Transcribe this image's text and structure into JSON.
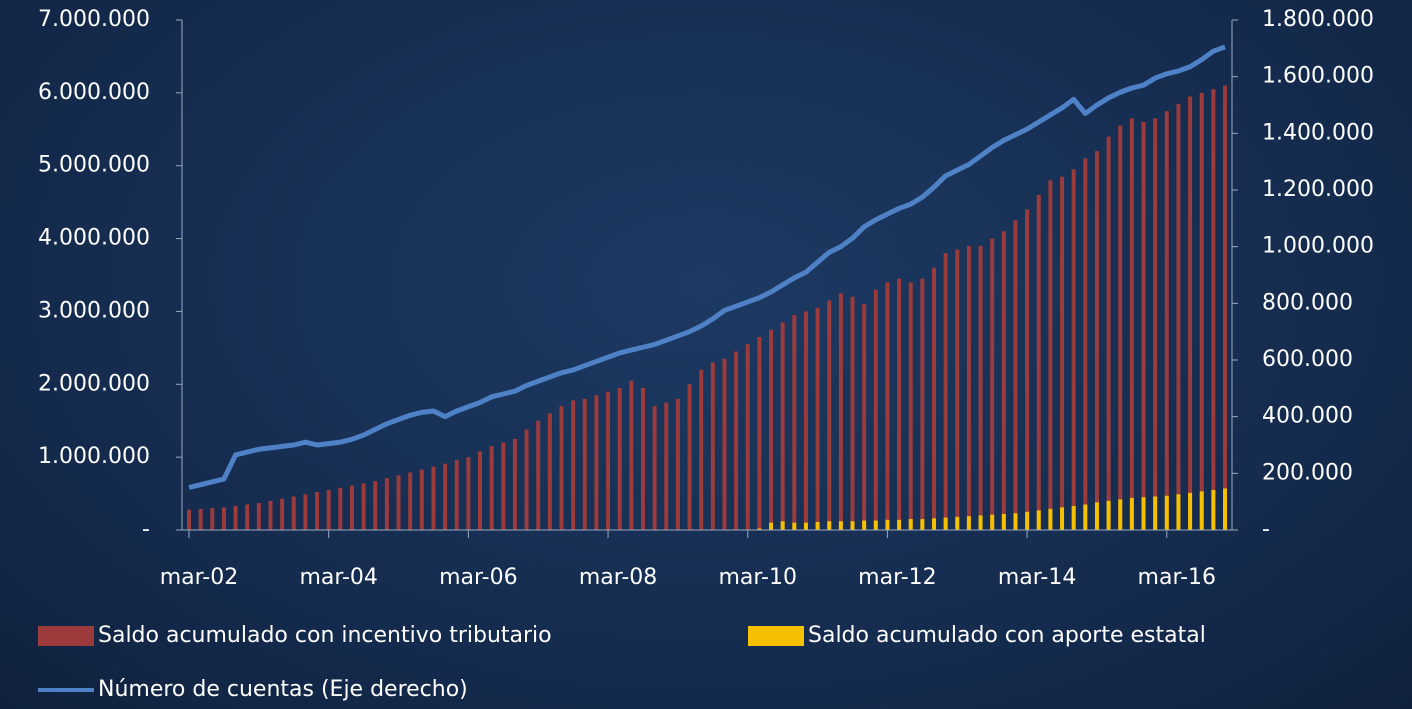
{
  "chart_data": {
    "type": "bar",
    "categories": [
      "mar-02",
      null,
      null,
      null,
      null,
      null,
      null,
      null,
      null,
      null,
      null,
      null,
      "mar-04",
      null,
      null,
      null,
      null,
      null,
      null,
      null,
      null,
      null,
      null,
      null,
      "mar-06",
      null,
      null,
      null,
      null,
      null,
      null,
      null,
      null,
      null,
      null,
      null,
      "mar-08",
      null,
      null,
      null,
      null,
      null,
      null,
      null,
      null,
      null,
      null,
      null,
      "mar-10",
      null,
      null,
      null,
      null,
      null,
      null,
      null,
      null,
      null,
      null,
      null,
      "mar-12",
      null,
      null,
      null,
      null,
      null,
      null,
      null,
      null,
      null,
      null,
      null,
      "mar-14",
      null,
      null,
      null,
      null,
      null,
      null,
      null,
      null,
      null,
      null,
      null,
      "mar-16",
      null,
      null,
      null,
      null,
      null
    ],
    "series": [
      {
        "name": "Saldo acumulado con incentivo tributario",
        "color": "#9b3b3b",
        "values": [
          280000,
          290000,
          300000,
          310000,
          330000,
          350000,
          370000,
          400000,
          430000,
          460000,
          490000,
          520000,
          550000,
          580000,
          610000,
          640000,
          670000,
          710000,
          750000,
          790000,
          830000,
          870000,
          910000,
          960000,
          1000000,
          1080000,
          1150000,
          1200000,
          1250000,
          1380000,
          1500000,
          1600000,
          1700000,
          1780000,
          1800000,
          1850000,
          1900000,
          1950000,
          2050000,
          1950000,
          1700000,
          1750000,
          1800000,
          2000000,
          2200000,
          2300000,
          2350000,
          2450000,
          2550000,
          2650000,
          2750000,
          2850000,
          2950000,
          3000000,
          3050000,
          3150000,
          3250000,
          3200000,
          3100000,
          3300000,
          3400000,
          3450000,
          3400000,
          3450000,
          3600000,
          3800000,
          3850000,
          3900000,
          3900000,
          4000000,
          4100000,
          4250000,
          4400000,
          4600000,
          4800000,
          4850000,
          4950000,
          5100000,
          5200000,
          5400000,
          5550000,
          5650000,
          5600000,
          5650000,
          5750000,
          5850000,
          5950000,
          6000000,
          6050000,
          6100000
        ]
      },
      {
        "name": "Saldo acumulado con aporte estatal",
        "color": "#f5c000",
        "values": [
          null,
          null,
          null,
          null,
          null,
          null,
          null,
          null,
          null,
          null,
          null,
          null,
          null,
          null,
          null,
          null,
          null,
          null,
          null,
          null,
          null,
          null,
          null,
          null,
          null,
          null,
          null,
          null,
          null,
          null,
          null,
          null,
          null,
          null,
          null,
          null,
          null,
          null,
          null,
          null,
          null,
          null,
          null,
          null,
          null,
          null,
          null,
          null,
          null,
          20000,
          100000,
          120000,
          100000,
          100000,
          110000,
          120000,
          120000,
          120000,
          130000,
          130000,
          140000,
          140000,
          150000,
          150000,
          160000,
          170000,
          180000,
          190000,
          200000,
          210000,
          220000,
          230000,
          250000,
          270000,
          290000,
          310000,
          330000,
          350000,
          380000,
          400000,
          420000,
          440000,
          450000,
          460000,
          470000,
          490000,
          510000,
          530000,
          550000,
          570000
        ]
      },
      {
        "name": "Número de cuentas  (Eje derecho)",
        "color": "#4f81c7",
        "axis": "y2",
        "type": "line",
        "values": [
          150000,
          160000,
          170000,
          180000,
          265000,
          275000,
          285000,
          290000,
          295000,
          300000,
          310000,
          300000,
          305000,
          310000,
          320000,
          335000,
          355000,
          375000,
          390000,
          405000,
          415000,
          420000,
          400000,
          420000,
          435000,
          450000,
          470000,
          480000,
          490000,
          510000,
          525000,
          540000,
          555000,
          565000,
          580000,
          595000,
          610000,
          625000,
          635000,
          645000,
          655000,
          670000,
          685000,
          700000,
          720000,
          745000,
          775000,
          790000,
          805000,
          820000,
          840000,
          865000,
          890000,
          910000,
          945000,
          980000,
          1000000,
          1030000,
          1070000,
          1095000,
          1115000,
          1135000,
          1150000,
          1175000,
          1210000,
          1250000,
          1270000,
          1290000,
          1320000,
          1350000,
          1375000,
          1395000,
          1415000,
          1440000,
          1465000,
          1490000,
          1520000,
          1470000,
          1500000,
          1525000,
          1545000,
          1560000,
          1570000,
          1595000,
          1610000,
          1620000,
          1635000,
          1660000,
          1690000,
          1705000
        ]
      }
    ],
    "ylim": [
      0,
      7000000
    ],
    "yticks": [
      {
        "value": 0,
        "label": "-"
      },
      {
        "value": 1000000,
        "label": "1.000.000"
      },
      {
        "value": 2000000,
        "label": "2.000.000"
      },
      {
        "value": 3000000,
        "label": "3.000.000"
      },
      {
        "value": 4000000,
        "label": "4.000.000"
      },
      {
        "value": 5000000,
        "label": "5.000.000"
      },
      {
        "value": 6000000,
        "label": "6.000.000"
      },
      {
        "value": 7000000,
        "label": "7.000.000"
      }
    ],
    "y2lim": [
      0,
      1800000
    ],
    "y2ticks": [
      {
        "value": 0,
        "label": "-"
      },
      {
        "value": 200000,
        "label": "200.000"
      },
      {
        "value": 400000,
        "label": "400.000"
      },
      {
        "value": 600000,
        "label": "600.000"
      },
      {
        "value": 800000,
        "label": "800.000"
      },
      {
        "value": 1000000,
        "label": "1.000.000"
      },
      {
        "value": 1200000,
        "label": "1.200.000"
      },
      {
        "value": 1400000,
        "label": "1.400.000"
      },
      {
        "value": 1600000,
        "label": "1.600.000"
      },
      {
        "value": 1800000,
        "label": "1.800.000"
      }
    ]
  }
}
